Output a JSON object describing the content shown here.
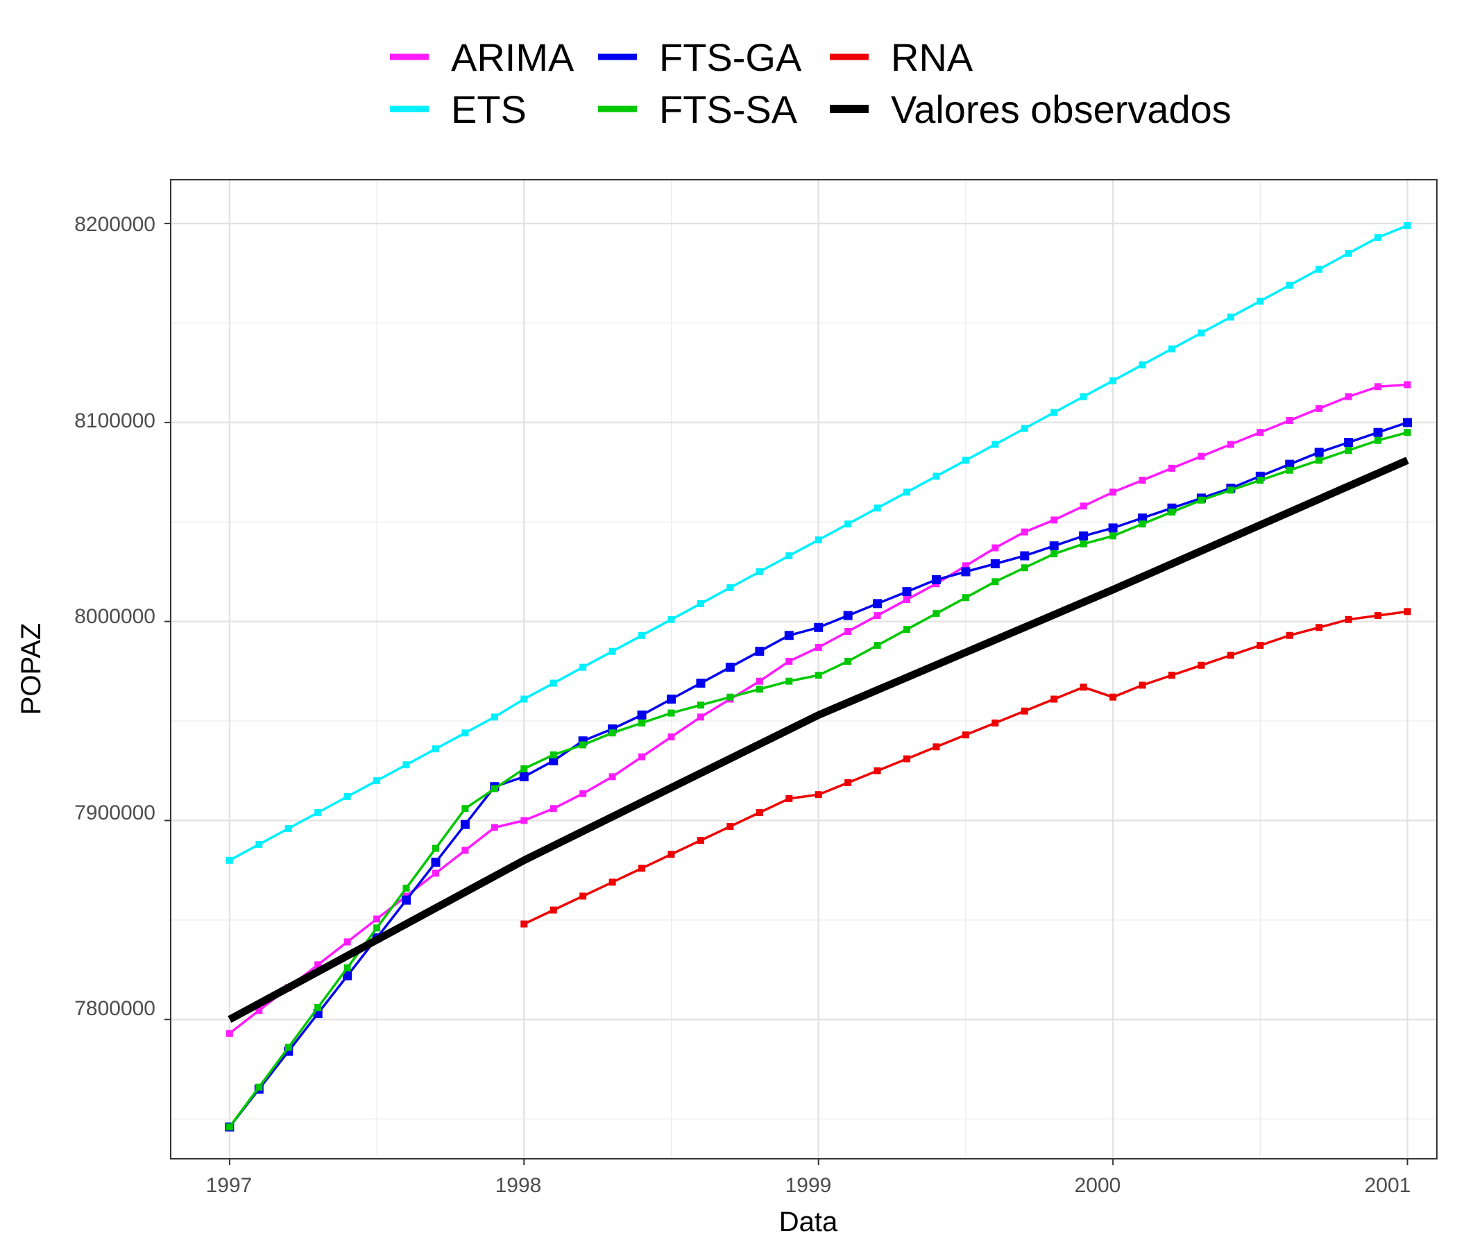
{
  "chart_data": {
    "type": "line",
    "xlabel": "Data",
    "ylabel": "POPAZ",
    "xlim": [
      1996.8,
      2001.1
    ],
    "ylim": [
      7730000,
      8222000
    ],
    "x_ticks": [
      1997,
      1998,
      1999,
      2000,
      2001
    ],
    "x_tick_labels": [
      "1997",
      "1998",
      "1999",
      "2000",
      "2001"
    ],
    "y_ticks": [
      7800000,
      7900000,
      8000000,
      8100000,
      8200000
    ],
    "y_tick_labels": [
      "7800000",
      "7900000",
      "8000000",
      "8100000",
      "8200000"
    ],
    "grid": true,
    "legend_position": "top",
    "series": [
      {
        "name": "ARIMA",
        "color": "#ff1cff",
        "points": [
          [
            1997.0,
            7793000
          ],
          [
            1997.1,
            7804500
          ],
          [
            1997.2,
            7816000
          ],
          [
            1997.3,
            7827500
          ],
          [
            1997.4,
            7839000
          ],
          [
            1997.5,
            7850500
          ],
          [
            1997.6,
            7862000
          ],
          [
            1997.7,
            7873500
          ],
          [
            1997.8,
            7885000
          ],
          [
            1997.9,
            7896500
          ],
          [
            1998.0,
            7900000
          ],
          [
            1998.1,
            7906000
          ],
          [
            1998.2,
            7913500
          ],
          [
            1998.3,
            7922000
          ],
          [
            1998.4,
            7932000
          ],
          [
            1998.5,
            7942000
          ],
          [
            1998.6,
            7952000
          ],
          [
            1998.7,
            7961000
          ],
          [
            1998.8,
            7970000
          ],
          [
            1998.9,
            7980000
          ],
          [
            1999.0,
            7987000
          ],
          [
            1999.1,
            7995000
          ],
          [
            1999.2,
            8003000
          ],
          [
            1999.3,
            8011000
          ],
          [
            1999.4,
            8019000
          ],
          [
            1999.5,
            8028000
          ],
          [
            1999.6,
            8037000
          ],
          [
            1999.7,
            8045000
          ],
          [
            1999.8,
            8051000
          ],
          [
            1999.9,
            8058000
          ],
          [
            2000.0,
            8065000
          ],
          [
            2000.1,
            8071000
          ],
          [
            2000.2,
            8077000
          ],
          [
            2000.3,
            8083000
          ],
          [
            2000.4,
            8089000
          ],
          [
            2000.5,
            8095000
          ],
          [
            2000.6,
            8101000
          ],
          [
            2000.7,
            8107000
          ],
          [
            2000.8,
            8113000
          ],
          [
            2000.9,
            8118000
          ],
          [
            2001.0,
            8119000
          ]
        ]
      },
      {
        "name": "ETS",
        "color": "#00f0ff",
        "points": [
          [
            1997.0,
            7880000
          ],
          [
            1997.1,
            7888000
          ],
          [
            1997.2,
            7896000
          ],
          [
            1997.3,
            7904000
          ],
          [
            1997.4,
            7912000
          ],
          [
            1997.5,
            7920000
          ],
          [
            1997.6,
            7928000
          ],
          [
            1997.7,
            7936000
          ],
          [
            1997.8,
            7944000
          ],
          [
            1997.9,
            7952000
          ],
          [
            1998.0,
            7961000
          ],
          [
            1998.1,
            7969000
          ],
          [
            1998.2,
            7977000
          ],
          [
            1998.3,
            7985000
          ],
          [
            1998.4,
            7993000
          ],
          [
            1998.5,
            8001000
          ],
          [
            1998.6,
            8009000
          ],
          [
            1998.7,
            8017000
          ],
          [
            1998.8,
            8025000
          ],
          [
            1998.9,
            8033000
          ],
          [
            1999.0,
            8041000
          ],
          [
            1999.1,
            8049000
          ],
          [
            1999.2,
            8057000
          ],
          [
            1999.3,
            8065000
          ],
          [
            1999.4,
            8073000
          ],
          [
            1999.5,
            8081000
          ],
          [
            1999.6,
            8089000
          ],
          [
            1999.7,
            8097000
          ],
          [
            1999.8,
            8105000
          ],
          [
            1999.9,
            8113000
          ],
          [
            2000.0,
            8121000
          ],
          [
            2000.1,
            8129000
          ],
          [
            2000.2,
            8137000
          ],
          [
            2000.3,
            8145000
          ],
          [
            2000.4,
            8153000
          ],
          [
            2000.5,
            8161000
          ],
          [
            2000.6,
            8169000
          ],
          [
            2000.7,
            8177000
          ],
          [
            2000.8,
            8185000
          ],
          [
            2000.9,
            8193000
          ],
          [
            2001.0,
            8199000
          ]
        ]
      },
      {
        "name": "FTS-GA",
        "color": "#0000ee",
        "points": [
          [
            1997.0,
            7746000
          ],
          [
            1997.1,
            7765000
          ],
          [
            1997.2,
            7784000
          ],
          [
            1997.3,
            7803000
          ],
          [
            1997.4,
            7822000
          ],
          [
            1997.5,
            7841000
          ],
          [
            1997.6,
            7860000
          ],
          [
            1997.7,
            7879000
          ],
          [
            1997.8,
            7898000
          ],
          [
            1997.9,
            7917000
          ],
          [
            1998.0,
            7922000
          ],
          [
            1998.1,
            7930000
          ],
          [
            1998.2,
            7940000
          ],
          [
            1998.3,
            7946000
          ],
          [
            1998.4,
            7953000
          ],
          [
            1998.5,
            7961000
          ],
          [
            1998.6,
            7969000
          ],
          [
            1998.7,
            7977000
          ],
          [
            1998.8,
            7985000
          ],
          [
            1998.9,
            7993000
          ],
          [
            1999.0,
            7997000
          ],
          [
            1999.1,
            8003000
          ],
          [
            1999.2,
            8009000
          ],
          [
            1999.3,
            8015000
          ],
          [
            1999.4,
            8021000
          ],
          [
            1999.5,
            8025000
          ],
          [
            1999.6,
            8029000
          ],
          [
            1999.7,
            8033000
          ],
          [
            1999.8,
            8038000
          ],
          [
            1999.9,
            8043000
          ],
          [
            2000.0,
            8047000
          ],
          [
            2000.1,
            8052000
          ],
          [
            2000.2,
            8057000
          ],
          [
            2000.3,
            8062000
          ],
          [
            2000.4,
            8067000
          ],
          [
            2000.5,
            8073000
          ],
          [
            2000.6,
            8079000
          ],
          [
            2000.7,
            8085000
          ],
          [
            2000.8,
            8090000
          ],
          [
            2000.9,
            8095000
          ],
          [
            2001.0,
            8100000
          ]
        ]
      },
      {
        "name": "FTS-SA",
        "color": "#00c800",
        "points": [
          [
            1997.0,
            7746000
          ],
          [
            1997.1,
            7766000
          ],
          [
            1997.2,
            7786000
          ],
          [
            1997.3,
            7806000
          ],
          [
            1997.4,
            7826000
          ],
          [
            1997.5,
            7846000
          ],
          [
            1997.6,
            7866000
          ],
          [
            1997.7,
            7886000
          ],
          [
            1997.8,
            7906000
          ],
          [
            1997.9,
            7916000
          ],
          [
            1998.0,
            7926000
          ],
          [
            1998.1,
            7933000
          ],
          [
            1998.2,
            7938000
          ],
          [
            1998.3,
            7944000
          ],
          [
            1998.4,
            7949000
          ],
          [
            1998.5,
            7954000
          ],
          [
            1998.6,
            7958000
          ],
          [
            1998.7,
            7962000
          ],
          [
            1998.8,
            7966000
          ],
          [
            1998.9,
            7970000
          ],
          [
            1999.0,
            7973000
          ],
          [
            1999.1,
            7980000
          ],
          [
            1999.2,
            7988000
          ],
          [
            1999.3,
            7996000
          ],
          [
            1999.4,
            8004000
          ],
          [
            1999.5,
            8012000
          ],
          [
            1999.6,
            8020000
          ],
          [
            1999.7,
            8027000
          ],
          [
            1999.8,
            8034000
          ],
          [
            1999.9,
            8039000
          ],
          [
            2000.0,
            8043000
          ],
          [
            2000.1,
            8049000
          ],
          [
            2000.2,
            8055000
          ],
          [
            2000.3,
            8061000
          ],
          [
            2000.4,
            8066000
          ],
          [
            2000.5,
            8071000
          ],
          [
            2000.6,
            8076000
          ],
          [
            2000.7,
            8081000
          ],
          [
            2000.8,
            8086000
          ],
          [
            2000.9,
            8091000
          ],
          [
            2001.0,
            8095000
          ]
        ]
      },
      {
        "name": "RNA",
        "color": "#ee0000",
        "points": [
          [
            1998.0,
            7848000
          ],
          [
            1998.1,
            7855000
          ],
          [
            1998.2,
            7862000
          ],
          [
            1998.3,
            7869000
          ],
          [
            1998.4,
            7876000
          ],
          [
            1998.5,
            7883000
          ],
          [
            1998.6,
            7890000
          ],
          [
            1998.7,
            7897000
          ],
          [
            1998.8,
            7904000
          ],
          [
            1998.9,
            7911000
          ],
          [
            1999.0,
            7913000
          ],
          [
            1999.1,
            7919000
          ],
          [
            1999.2,
            7925000
          ],
          [
            1999.3,
            7931000
          ],
          [
            1999.4,
            7937000
          ],
          [
            1999.5,
            7943000
          ],
          [
            1999.6,
            7949000
          ],
          [
            1999.7,
            7955000
          ],
          [
            1999.8,
            7961000
          ],
          [
            1999.9,
            7967000
          ],
          [
            2000.0,
            7962000
          ],
          [
            2000.1,
            7968000
          ],
          [
            2000.2,
            7973000
          ],
          [
            2000.3,
            7978000
          ],
          [
            2000.4,
            7983000
          ],
          [
            2000.5,
            7988000
          ],
          [
            2000.6,
            7993000
          ],
          [
            2000.7,
            7997000
          ],
          [
            2000.8,
            8001000
          ],
          [
            2000.9,
            8003000
          ],
          [
            2001.0,
            8005000
          ]
        ]
      },
      {
        "name": "Valores observados",
        "color": "#000000",
        "points": [
          [
            1997.0,
            7800000
          ],
          [
            1998.0,
            7880000
          ],
          [
            1999.0,
            7953000
          ],
          [
            2000.0,
            8016000
          ],
          [
            2001.0,
            8081000
          ]
        ]
      }
    ]
  }
}
